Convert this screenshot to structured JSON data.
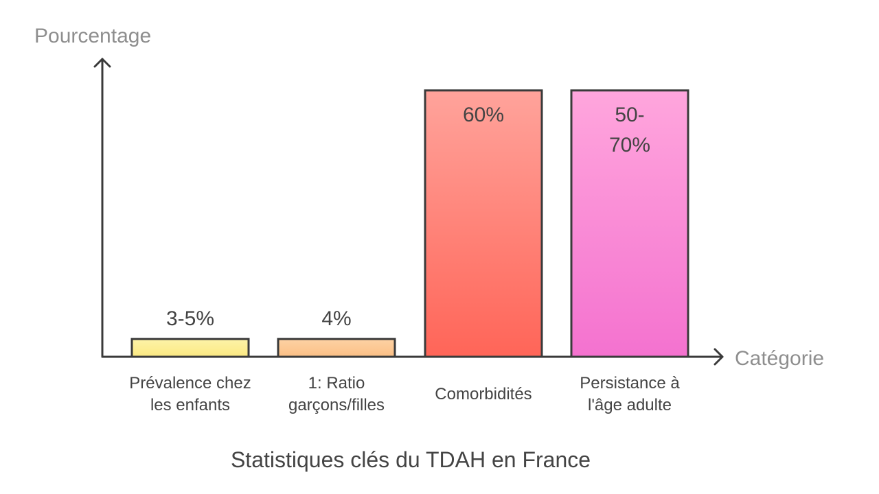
{
  "chart_data": {
    "type": "bar",
    "title": "Statistiques clés du TDAH en France",
    "ylabel": "Pourcentage",
    "xlabel": "Catégorie",
    "ylim": [
      0,
      66
    ],
    "grid": false,
    "categories": [
      {
        "lines": [
          "Prévalence chez",
          "les enfants"
        ]
      },
      {
        "lines": [
          "1: Ratio",
          "garçons/filles"
        ]
      },
      {
        "lines": [
          "Comorbidités"
        ]
      },
      {
        "lines": [
          "Persistance à",
          "l'âge adulte"
        ]
      }
    ],
    "values": [
      4,
      4,
      60,
      60
    ],
    "value_labels": [
      [
        "3-5%"
      ],
      [
        "4%"
      ],
      [
        "60%"
      ],
      [
        "50-",
        "70%"
      ]
    ],
    "colors": [
      {
        "top": "#fdf3a8",
        "bottom": "#fbe982"
      },
      {
        "top": "#fdd2a4",
        "bottom": "#fbbf85"
      },
      {
        "top": "#ffa39b",
        "bottom": "#ff6558"
      },
      {
        "top": "#ffa6dd",
        "bottom": "#f472cf"
      }
    ]
  }
}
